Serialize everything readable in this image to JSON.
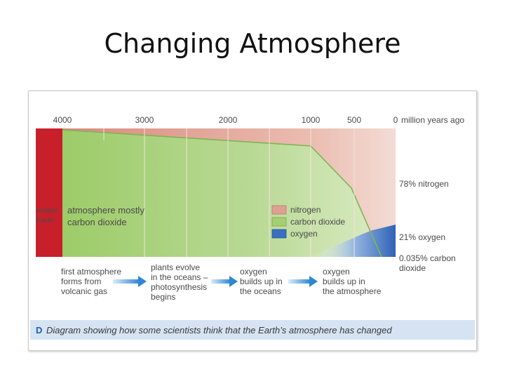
{
  "slide": {
    "title": "Changing Atmosphere"
  },
  "timeline": {
    "ticks": [
      "4000",
      "3000",
      "2000",
      "1000",
      "500",
      "0"
    ],
    "unit_label": "million years ago"
  },
  "labels": {
    "molten_line1": "molten",
    "molten_line2": "Earth",
    "atm_line1": "atmosphere mostly",
    "atm_line2": "carbon dioxide",
    "right_nitrogen": "78% nitrogen",
    "right_oxygen": "21% oxygen",
    "right_co2_line1": "0.035% carbon",
    "right_co2_line2": "dioxide"
  },
  "legend": [
    {
      "label": "nitrogen",
      "color": "#dfa093"
    },
    {
      "label": "carbon dioxide",
      "color": "#a5cf72"
    },
    {
      "label": "oxygen",
      "color": "#3a6fc0"
    }
  ],
  "stages": [
    {
      "lines": [
        "first atmosphere",
        "forms from",
        "volcanic gas"
      ]
    },
    {
      "lines": [
        "plants evolve",
        "in the oceans –",
        "photosynthesis",
        "begins"
      ]
    },
    {
      "lines": [
        "oxygen",
        "builds up in",
        "the oceans"
      ]
    },
    {
      "lines": [
        "oxygen",
        "builds up in",
        "the atmosphere"
      ]
    }
  ],
  "caption": {
    "letter": "D",
    "text": "Diagram showing how some scientists think that the Earth’s atmosphere has changed"
  },
  "colors": {
    "molten": "#c8202a",
    "nitrogen": "#e4aea2",
    "co2": "#a5cf72",
    "oxygen": "#3a6fc0",
    "caption_bg": "#d6e3f2",
    "arrow": "#3a8fd6"
  }
}
